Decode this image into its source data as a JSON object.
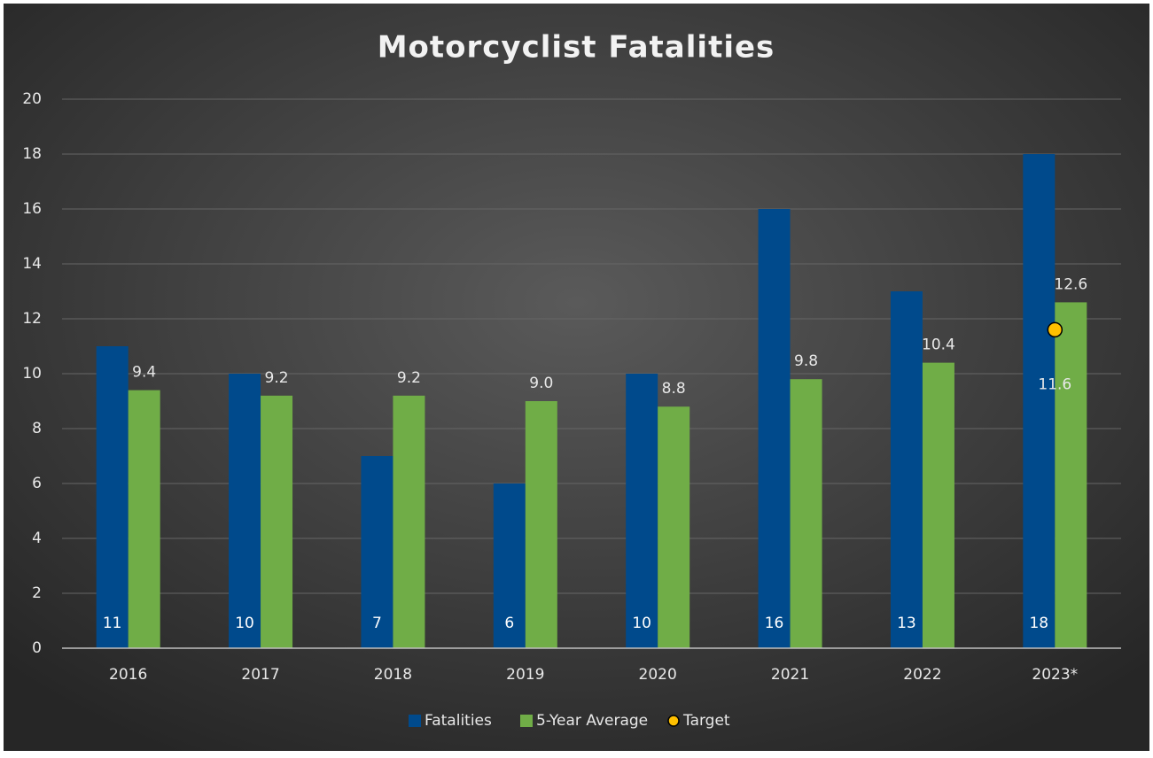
{
  "chart_data": {
    "type": "bar",
    "title": "Motorcyclist Fatalities",
    "categories": [
      "2016",
      "2017",
      "2018",
      "2019",
      "2020",
      "2021",
      "2022",
      "2023*"
    ],
    "series": [
      {
        "name": "Fatalities",
        "type": "bar",
        "color": "#004a8c",
        "values": [
          11,
          10,
          7,
          6,
          10,
          16,
          13,
          18
        ]
      },
      {
        "name": "5-Year Average",
        "type": "bar",
        "color": "#70ad47",
        "values": [
          9.4,
          9.2,
          9.2,
          9,
          8.8,
          9.8,
          10.4,
          12.6
        ],
        "value_labels": [
          "9.4",
          "9.2",
          "9.2",
          "9.0",
          "8.8",
          "9.8",
          "10.4",
          "12.6"
        ]
      },
      {
        "name": "Target",
        "type": "scatter",
        "color": "#ffc000",
        "values": [
          null,
          null,
          null,
          null,
          null,
          null,
          null,
          11.6
        ]
      }
    ],
    "ylim": [
      0,
      20
    ],
    "yticks": [
      0,
      2,
      4,
      6,
      8,
      10,
      12,
      14,
      16,
      18,
      20
    ],
    "grid": true,
    "legend": "bottom"
  }
}
